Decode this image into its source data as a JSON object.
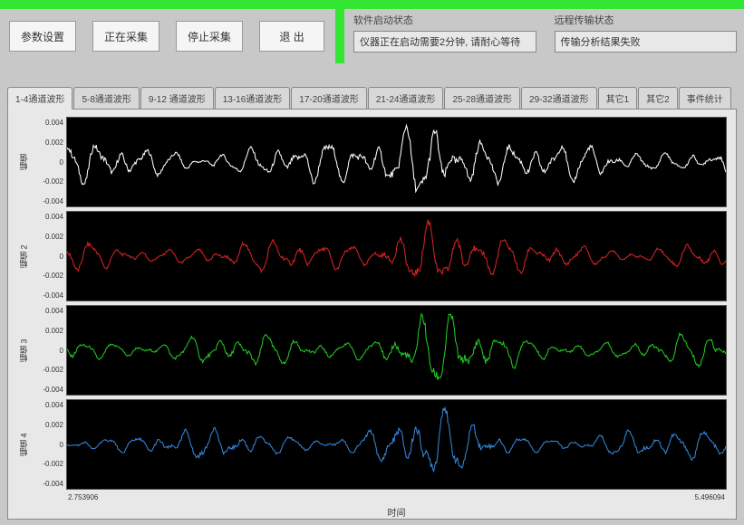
{
  "border_color": "#33e633",
  "toolbar": {
    "buttons": [
      {
        "label": "参数设置"
      },
      {
        "label": "正在采集"
      },
      {
        "label": "停止采集"
      },
      {
        "label": "退    出"
      }
    ]
  },
  "status": {
    "software": {
      "label": "软件启动状态",
      "value": "仪器正在启动需要2分钟, 请耐心等待"
    },
    "remote": {
      "label": "远程传输状态",
      "value": "传输分析结果失败"
    }
  },
  "tabs": [
    {
      "label": "1-4通道波形",
      "active": true
    },
    {
      "label": "5-8通道波形"
    },
    {
      "label": "9-12 通道波形"
    },
    {
      "label": "13-16通道波形"
    },
    {
      "label": "17-20通道波形"
    },
    {
      "label": "21-24通道波形"
    },
    {
      "label": "25-28通道波形"
    },
    {
      "label": "29-32通道波形"
    },
    {
      "label": "其它1"
    },
    {
      "label": "其它2"
    },
    {
      "label": "事件统计"
    }
  ],
  "charts": {
    "x_axis_label": "时间",
    "x_min": 2.753906,
    "x_max": 5.496094,
    "y_ticks": [
      "0.004",
      "0.002",
      "0",
      "-0.002",
      "-0.004"
    ],
    "plot_bg": "#000000",
    "series": [
      {
        "name": "幅值",
        "color": "#ffffff"
      },
      {
        "name": "幅值 2",
        "color": "#dd2222"
      },
      {
        "name": "幅值 3",
        "color": "#22cc22"
      },
      {
        "name": "幅值 4",
        "color": "#3388dd"
      }
    ]
  }
}
